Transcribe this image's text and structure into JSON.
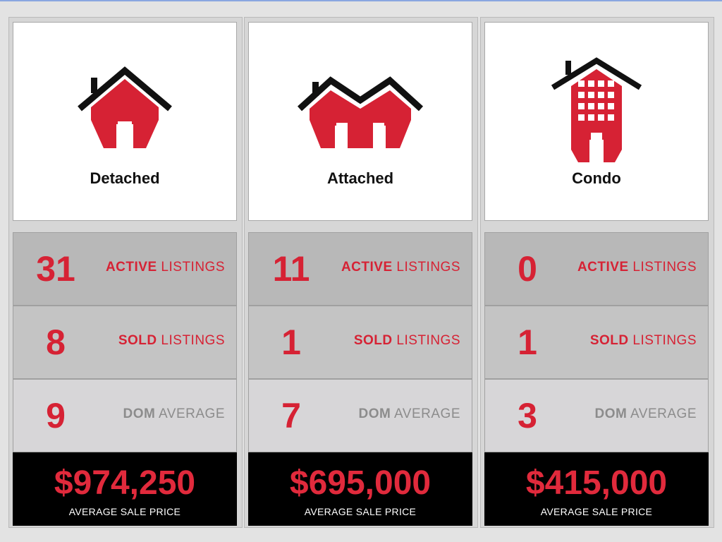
{
  "colors": {
    "accent": "#d62234",
    "muted": "#8c8c8c",
    "price_bg": "#000000"
  },
  "columns": [
    {
      "name": "Detached",
      "icon": "detached-house-icon",
      "active": {
        "value": "31",
        "key": "ACTIVE",
        "word": "LISTINGS"
      },
      "sold": {
        "value": "8",
        "key": "SOLD",
        "word": "LISTINGS"
      },
      "dom": {
        "value": "9",
        "key": "DOM",
        "word": "AVERAGE"
      },
      "price": {
        "value": "$974,250",
        "caption": "AVERAGE SALE PRICE"
      }
    },
    {
      "name": "Attached",
      "icon": "attached-house-icon",
      "active": {
        "value": "11",
        "key": "ACTIVE",
        "word": "LISTINGS"
      },
      "sold": {
        "value": "1",
        "key": "SOLD",
        "word": "LISTINGS"
      },
      "dom": {
        "value": "7",
        "key": "DOM",
        "word": "AVERAGE"
      },
      "price": {
        "value": "$695,000",
        "caption": "AVERAGE SALE PRICE"
      }
    },
    {
      "name": "Condo",
      "icon": "condo-building-icon",
      "active": {
        "value": "0",
        "key": "ACTIVE",
        "word": "LISTINGS"
      },
      "sold": {
        "value": "1",
        "key": "SOLD",
        "word": "LISTINGS"
      },
      "dom": {
        "value": "3",
        "key": "DOM",
        "word": "AVERAGE"
      },
      "price": {
        "value": "$415,000",
        "caption": "AVERAGE SALE PRICE"
      }
    }
  ]
}
